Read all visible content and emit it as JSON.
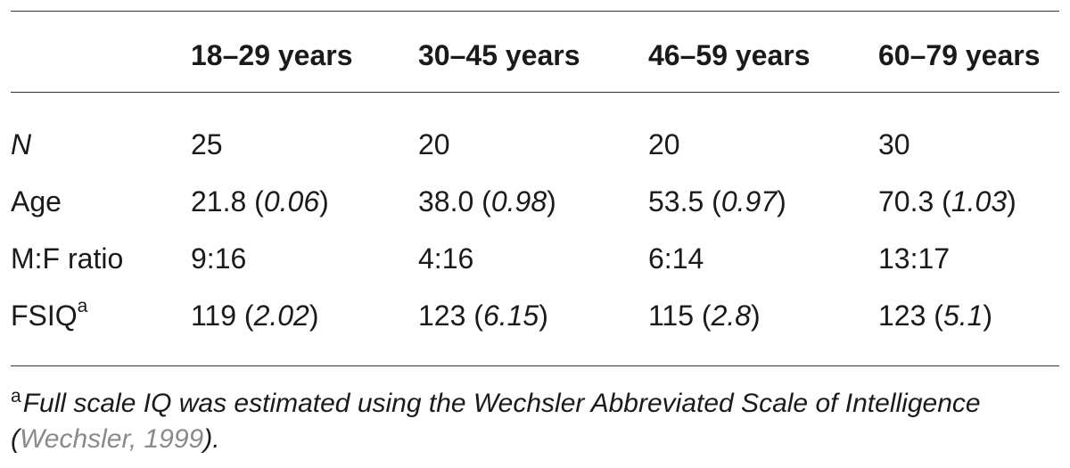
{
  "table": {
    "headers": [
      "",
      "18–29 years",
      "30–45 years",
      "46–59 years",
      "60–79 years"
    ],
    "rows": [
      {
        "label": "N",
        "cells": [
          {
            "value": "25",
            "se": ""
          },
          {
            "value": "20",
            "se": ""
          },
          {
            "value": "20",
            "se": ""
          },
          {
            "value": "30",
            "se": ""
          }
        ]
      },
      {
        "label": "Age",
        "cells": [
          {
            "value": "21.8",
            "se": "0.06"
          },
          {
            "value": "38.0",
            "se": "0.98"
          },
          {
            "value": "53.5",
            "se": "0.97"
          },
          {
            "value": "70.3",
            "se": "1.03"
          }
        ]
      },
      {
        "label": "M:F ratio",
        "cells": [
          {
            "value": "9:16",
            "se": ""
          },
          {
            "value": "4:16",
            "se": ""
          },
          {
            "value": "6:14",
            "se": ""
          },
          {
            "value": "13:17",
            "se": ""
          }
        ]
      },
      {
        "label": "FSIQ",
        "label_sup": "a",
        "cells": [
          {
            "value": "119",
            "se": "2.02"
          },
          {
            "value": "123",
            "se": "6.15"
          },
          {
            "value": "115",
            "se": "2.8"
          },
          {
            "value": "123",
            "se": "5.1"
          }
        ]
      }
    ]
  },
  "footnote": {
    "marker": "a",
    "text": "Full scale IQ was estimated using the Wechsler Abbreviated Scale of Intelligence (",
    "citation": "Wechsler, 1999",
    "text_end": ")."
  }
}
